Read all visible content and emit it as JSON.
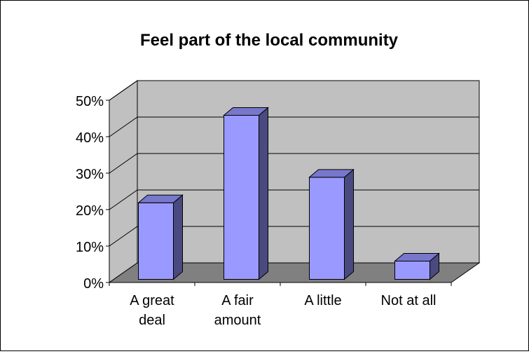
{
  "chart_data": {
    "type": "bar",
    "title": "Feel part of the local community",
    "xlabel": "",
    "ylabel": "",
    "categories": [
      [
        "A great",
        "deal"
      ],
      [
        "A fair",
        "amount"
      ],
      [
        "A little"
      ],
      [
        "Not at all"
      ]
    ],
    "values": [
      21,
      45,
      28,
      5
    ],
    "ylim": [
      0,
      50
    ],
    "yticks": [
      "0%",
      "10%",
      "20%",
      "30%",
      "40%",
      "50%"
    ],
    "grid": true,
    "legend": "none",
    "colors": {
      "bar_front": "#9999ff",
      "bar_side": "#4a4a80",
      "bar_top": "#7777cc",
      "wall": "#c0c0c0",
      "floor": "#808080",
      "outline": "#000000"
    }
  }
}
